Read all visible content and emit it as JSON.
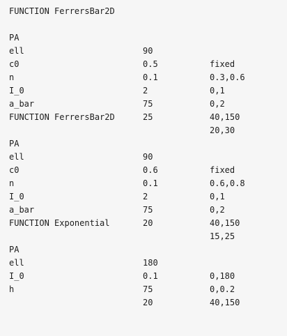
{
  "functions": [
    {
      "header": "FUNCTION FerrersBar2D",
      "params": [
        {
          "name": "PA",
          "value": "90",
          "limits": "fixed"
        },
        {
          "name": "ell",
          "value": "0.5",
          "limits": "0.3,0.6"
        },
        {
          "name": "c0",
          "value": "0.1",
          "limits": "0,1"
        },
        {
          "name": "n",
          "value": "2",
          "limits": "0,2"
        },
        {
          "name": "I_0",
          "value": "75",
          "limits": "40,150"
        },
        {
          "name": "a_bar",
          "value": "25",
          "limits": "20,30"
        }
      ]
    },
    {
      "header": "FUNCTION FerrersBar2D",
      "params": [
        {
          "name": "PA",
          "value": "90",
          "limits": "fixed"
        },
        {
          "name": "ell",
          "value": "0.6",
          "limits": "0.6,0.8"
        },
        {
          "name": "c0",
          "value": "0.1",
          "limits": "0,1"
        },
        {
          "name": "n",
          "value": "2",
          "limits": "0,2"
        },
        {
          "name": "I_0",
          "value": "75",
          "limits": "40,150"
        },
        {
          "name": "a_bar",
          "value": "20",
          "limits": "15,25"
        }
      ]
    },
    {
      "header": "FUNCTION Exponential",
      "params": [
        {
          "name": "PA",
          "value": "180",
          "limits": "0,180"
        },
        {
          "name": "ell",
          "value": "0.1",
          "limits": "0,0.2"
        },
        {
          "name": "I_0",
          "value": "75",
          "limits": "40,150"
        },
        {
          "name": "h",
          "value": "20",
          "limits": ""
        }
      ]
    }
  ]
}
